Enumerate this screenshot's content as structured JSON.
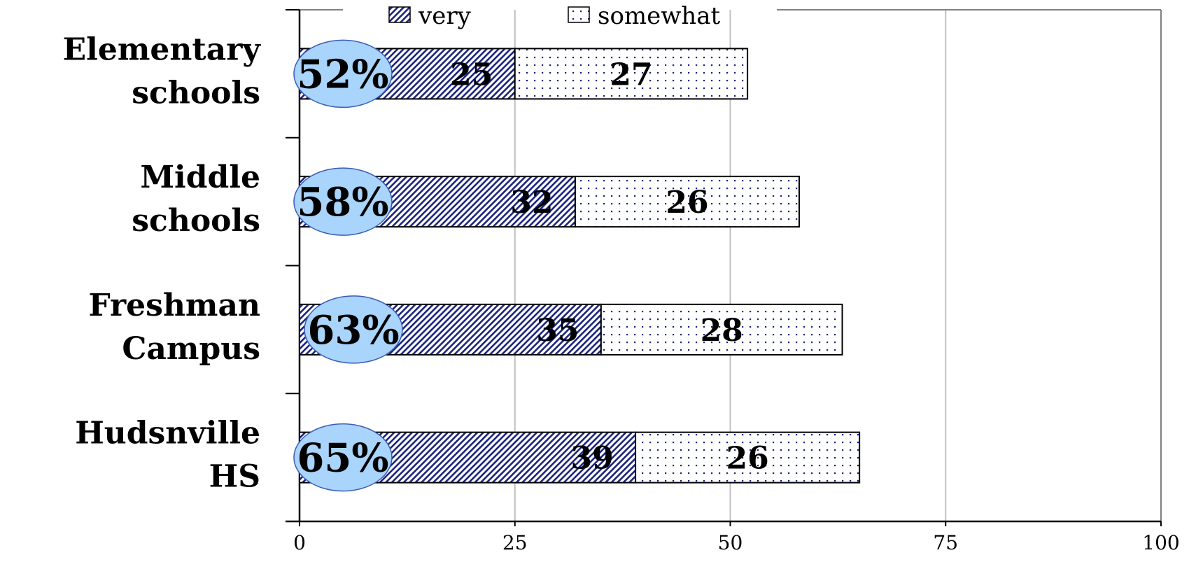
{
  "chart_data": {
    "type": "bar",
    "orientation": "horizontal",
    "stacked": true,
    "categories": [
      [
        "Elementary",
        "schools"
      ],
      [
        "Middle",
        "schools"
      ],
      [
        "Freshman",
        "Campus"
      ],
      [
        "Hudsnville",
        "HS"
      ]
    ],
    "series": [
      {
        "name": "very",
        "values": [
          25,
          32,
          35,
          39
        ],
        "pattern": "diagonal-hatch",
        "color": "#1a237e"
      },
      {
        "name": "somewhat",
        "values": [
          27,
          26,
          28,
          26
        ],
        "pattern": "dots",
        "color": "#1a237e"
      }
    ],
    "totals": [
      "52%",
      "58%",
      "63%",
      "65%"
    ],
    "total_badge_color": "#a9d4fb",
    "total_badge_border": "#3b5bb5",
    "xlim": [
      0,
      100
    ],
    "xticks": [
      "0",
      "25",
      "50",
      "75",
      "100"
    ],
    "grid": true,
    "legend_position": "top"
  }
}
